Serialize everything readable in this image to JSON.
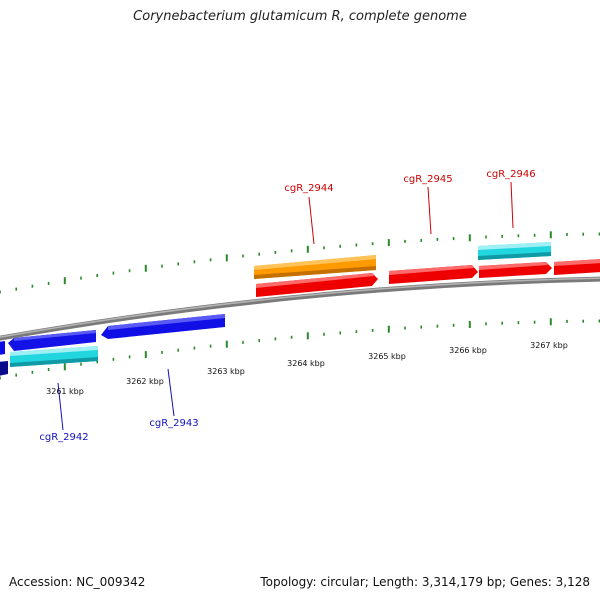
{
  "title": "Corynebacterium glutamicum R, complete genome",
  "footer": {
    "accession": "Accession: NC_009342",
    "topology": "Topology: circular; Length: 3,314,179 bp; Genes: 3,128"
  },
  "colors": {
    "backbone": "#8c8c8c",
    "tick": "#2a8a2a",
    "red": "#ff0000",
    "orange": "#ff9a00",
    "cyan": "#22d6e0",
    "blue": "#0a0ae6",
    "navy": "#0a0a8c",
    "label_red": "#cc0000",
    "label_blue": "#1010c0"
  },
  "kbp_labels": [
    "3261 kbp",
    "3262 kbp",
    "3263 kbp",
    "3264 kbp",
    "3265 kbp",
    "3266 kbp",
    "3267 kbp"
  ],
  "genes": [
    {
      "name": "cgR_2942",
      "color": "cyan"
    },
    {
      "name": "cgR_2943",
      "color": "blue"
    },
    {
      "name": "cgR_2944",
      "color": "red"
    },
    {
      "name": "cgR_2945",
      "color": "red"
    },
    {
      "name": "cgR_2946",
      "color": "red"
    }
  ]
}
